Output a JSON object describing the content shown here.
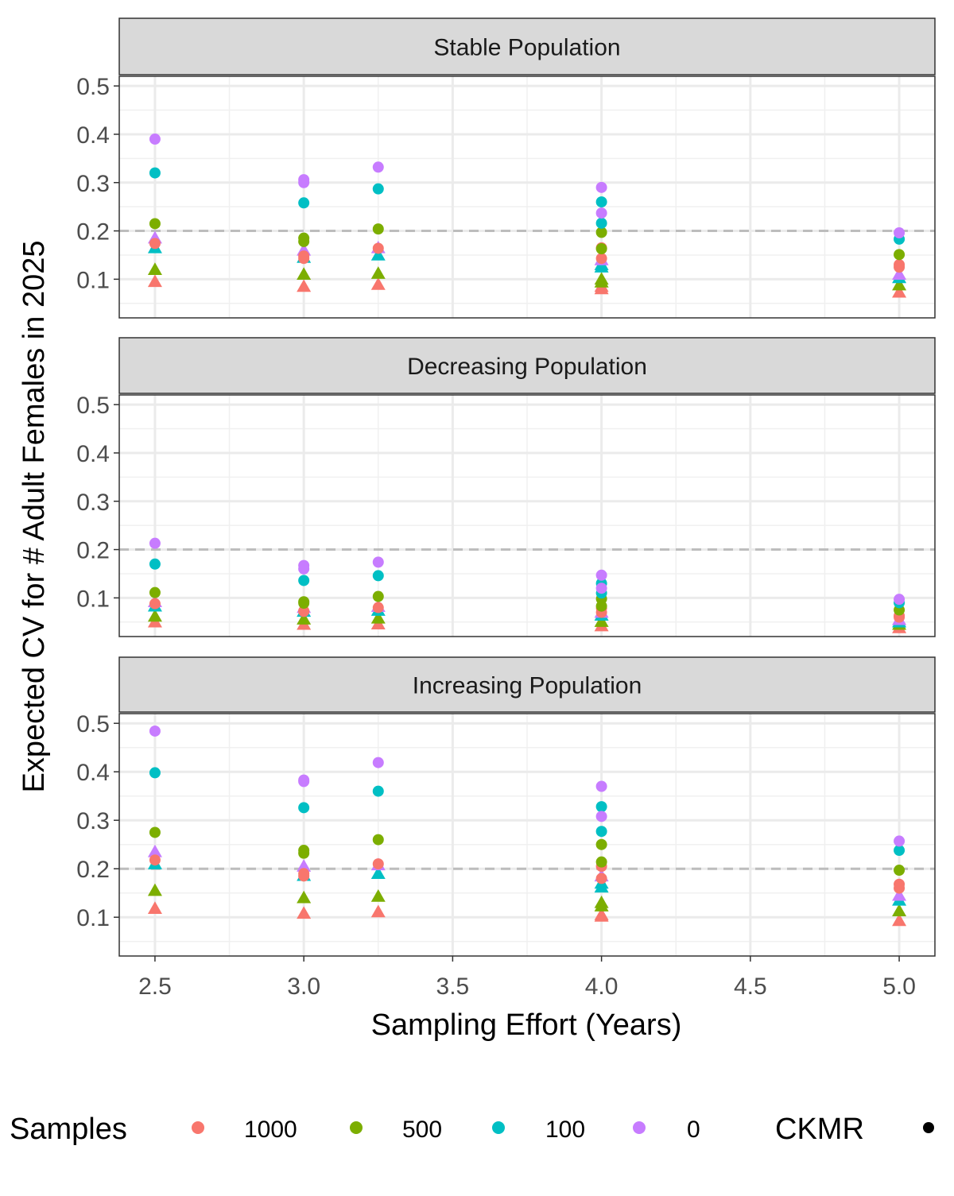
{
  "chart_data": {
    "type": "scatter",
    "xlabel": "Sampling Effort (Years)",
    "ylabel": "Expected CV for # Adult Females in 2025",
    "xlim": [
      2.38,
      5.12
    ],
    "ylim": [
      0.02,
      0.52
    ],
    "x_ticks": [
      "2.5",
      "3.0",
      "3.5",
      "4.0",
      "4.5",
      "5.0"
    ],
    "y_ticks": [
      "0.1",
      "0.2",
      "0.3",
      "0.4",
      "0.5"
    ],
    "reference_line": 0.2,
    "grid": true,
    "legend_position": "bottom",
    "colors": {
      "1000": "#F8766D",
      "500": "#7CAE00",
      "100": "#00BFC4",
      "0": "#C77CFF"
    },
    "legend": {
      "samples_title": "Samples",
      "samples_items": [
        "1000",
        "500",
        "100",
        "0"
      ],
      "ckmr_title": "CKMR"
    },
    "panels": [
      {
        "title": "Stable Population",
        "series": [
          {
            "samples": "1000",
            "shape": "circle",
            "points": [
              [
                2.5,
                0.174
              ],
              [
                3.0,
                0.148
              ],
              [
                3.0,
                0.143
              ],
              [
                3.25,
                0.164
              ],
              [
                4.0,
                0.165
              ],
              [
                4.0,
                0.143
              ],
              [
                5.0,
                0.13
              ],
              [
                5.0,
                0.125
              ]
            ]
          },
          {
            "samples": "500",
            "shape": "circle",
            "points": [
              [
                2.5,
                0.215
              ],
              [
                3.0,
                0.185
              ],
              [
                3.0,
                0.178
              ],
              [
                3.25,
                0.204
              ],
              [
                4.0,
                0.197
              ],
              [
                4.0,
                0.163
              ],
              [
                5.0,
                0.151
              ]
            ]
          },
          {
            "samples": "100",
            "shape": "circle",
            "points": [
              [
                2.5,
                0.32
              ],
              [
                3.0,
                0.258
              ],
              [
                3.25,
                0.287
              ],
              [
                4.0,
                0.26
              ],
              [
                4.0,
                0.216
              ],
              [
                5.0,
                0.183
              ]
            ]
          },
          {
            "samples": "0",
            "shape": "circle",
            "points": [
              [
                2.5,
                0.39
              ],
              [
                3.0,
                0.306
              ],
              [
                3.0,
                0.3
              ],
              [
                3.25,
                0.332
              ],
              [
                4.0,
                0.29
              ],
              [
                4.0,
                0.237
              ],
              [
                5.0,
                0.196
              ]
            ]
          },
          {
            "samples": "1000",
            "shape": "triangle",
            "points": [
              [
                2.5,
                0.095
              ],
              [
                3.0,
                0.085
              ],
              [
                3.25,
                0.089
              ],
              [
                4.0,
                0.08
              ],
              [
                4.0,
                0.085
              ],
              [
                5.0,
                0.073
              ]
            ]
          },
          {
            "samples": "500",
            "shape": "triangle",
            "points": [
              [
                2.5,
                0.12
              ],
              [
                3.0,
                0.11
              ],
              [
                3.25,
                0.112
              ],
              [
                4.0,
                0.1
              ],
              [
                4.0,
                0.094
              ],
              [
                5.0,
                0.088
              ]
            ]
          },
          {
            "samples": "100",
            "shape": "triangle",
            "points": [
              [
                2.5,
                0.165
              ],
              [
                3.0,
                0.145
              ],
              [
                3.25,
                0.15
              ],
              [
                4.0,
                0.13
              ],
              [
                4.0,
                0.125
              ],
              [
                5.0,
                0.103
              ]
            ]
          },
          {
            "samples": "0",
            "shape": "triangle",
            "points": [
              [
                2.5,
                0.185
              ],
              [
                3.0,
                0.16
              ],
              [
                3.25,
                0.165
              ],
              [
                4.0,
                0.14
              ],
              [
                5.0,
                0.11
              ]
            ]
          }
        ]
      },
      {
        "title": "Decreasing Population",
        "series": [
          {
            "samples": "1000",
            "shape": "circle",
            "points": [
              [
                2.5,
                0.088
              ],
              [
                3.0,
                0.073
              ],
              [
                3.0,
                0.072
              ],
              [
                3.25,
                0.08
              ],
              [
                4.0,
                0.079
              ],
              [
                4.0,
                0.07
              ],
              [
                5.0,
                0.063
              ],
              [
                5.0,
                0.06
              ]
            ]
          },
          {
            "samples": "500",
            "shape": "circle",
            "points": [
              [
                2.5,
                0.111
              ],
              [
                3.0,
                0.092
              ],
              [
                3.0,
                0.089
              ],
              [
                3.25,
                0.103
              ],
              [
                4.0,
                0.098
              ],
              [
                4.0,
                0.083
              ],
              [
                5.0,
                0.075
              ]
            ]
          },
          {
            "samples": "100",
            "shape": "circle",
            "points": [
              [
                2.5,
                0.17
              ],
              [
                3.0,
                0.136
              ],
              [
                3.25,
                0.146
              ],
              [
                4.0,
                0.13
              ],
              [
                4.0,
                0.11
              ],
              [
                5.0,
                0.09
              ]
            ]
          },
          {
            "samples": "0",
            "shape": "circle",
            "points": [
              [
                2.5,
                0.213
              ],
              [
                3.0,
                0.167
              ],
              [
                3.0,
                0.16
              ],
              [
                3.25,
                0.174
              ],
              [
                4.0,
                0.147
              ],
              [
                4.0,
                0.12
              ],
              [
                5.0,
                0.097
              ]
            ]
          },
          {
            "samples": "1000",
            "shape": "triangle",
            "points": [
              [
                2.5,
                0.05
              ],
              [
                3.0,
                0.045
              ],
              [
                3.25,
                0.046
              ],
              [
                4.0,
                0.042
              ],
              [
                5.0,
                0.038
              ]
            ]
          },
          {
            "samples": "500",
            "shape": "triangle",
            "points": [
              [
                2.5,
                0.062
              ],
              [
                3.0,
                0.056
              ],
              [
                3.25,
                0.058
              ],
              [
                4.0,
                0.051
              ],
              [
                5.0,
                0.045
              ]
            ]
          },
          {
            "samples": "100",
            "shape": "triangle",
            "points": [
              [
                2.5,
                0.083
              ],
              [
                3.0,
                0.072
              ],
              [
                3.25,
                0.074
              ],
              [
                4.0,
                0.064
              ],
              [
                5.0,
                0.05
              ]
            ]
          },
          {
            "samples": "0",
            "shape": "triangle",
            "points": [
              [
                2.5,
                0.092
              ],
              [
                3.0,
                0.08
              ],
              [
                3.25,
                0.082
              ],
              [
                4.0,
                0.07
              ],
              [
                5.0,
                0.055
              ]
            ]
          }
        ]
      },
      {
        "title": "Increasing Population",
        "series": [
          {
            "samples": "1000",
            "shape": "circle",
            "points": [
              [
                2.5,
                0.218
              ],
              [
                3.0,
                0.19
              ],
              [
                3.0,
                0.185
              ],
              [
                3.25,
                0.21
              ],
              [
                4.0,
                0.205
              ],
              [
                4.0,
                0.18
              ],
              [
                5.0,
                0.168
              ],
              [
                5.0,
                0.16
              ]
            ]
          },
          {
            "samples": "500",
            "shape": "circle",
            "points": [
              [
                2.5,
                0.275
              ],
              [
                3.0,
                0.238
              ],
              [
                3.0,
                0.232
              ],
              [
                3.25,
                0.26
              ],
              [
                4.0,
                0.25
              ],
              [
                4.0,
                0.214
              ],
              [
                5.0,
                0.197
              ]
            ]
          },
          {
            "samples": "100",
            "shape": "circle",
            "points": [
              [
                2.5,
                0.398
              ],
              [
                3.0,
                0.326
              ],
              [
                3.25,
                0.36
              ],
              [
                4.0,
                0.328
              ],
              [
                4.0,
                0.277
              ],
              [
                5.0,
                0.238
              ]
            ]
          },
          {
            "samples": "0",
            "shape": "circle",
            "points": [
              [
                2.5,
                0.484
              ],
              [
                3.0,
                0.383
              ],
              [
                3.0,
                0.38
              ],
              [
                3.25,
                0.419
              ],
              [
                4.0,
                0.37
              ],
              [
                4.0,
                0.308
              ],
              [
                5.0,
                0.257
              ]
            ]
          },
          {
            "samples": "1000",
            "shape": "triangle",
            "points": [
              [
                2.5,
                0.118
              ],
              [
                3.0,
                0.108
              ],
              [
                3.25,
                0.111
              ],
              [
                4.0,
                0.102
              ],
              [
                4.0,
                0.105
              ],
              [
                5.0,
                0.093
              ]
            ]
          },
          {
            "samples": "500",
            "shape": "triangle",
            "points": [
              [
                2.5,
                0.155
              ],
              [
                3.0,
                0.14
              ],
              [
                3.25,
                0.143
              ],
              [
                4.0,
                0.13
              ],
              [
                4.0,
                0.123
              ],
              [
                5.0,
                0.113
              ]
            ]
          },
          {
            "samples": "100",
            "shape": "triangle",
            "points": [
              [
                2.5,
                0.21
              ],
              [
                3.0,
                0.186
              ],
              [
                3.25,
                0.19
              ],
              [
                4.0,
                0.17
              ],
              [
                4.0,
                0.162
              ],
              [
                5.0,
                0.135
              ]
            ]
          },
          {
            "samples": "0",
            "shape": "triangle",
            "points": [
              [
                2.5,
                0.235
              ],
              [
                3.0,
                0.205
              ],
              [
                3.25,
                0.208
              ],
              [
                4.0,
                0.185
              ],
              [
                5.0,
                0.145
              ]
            ]
          }
        ]
      }
    ]
  }
}
